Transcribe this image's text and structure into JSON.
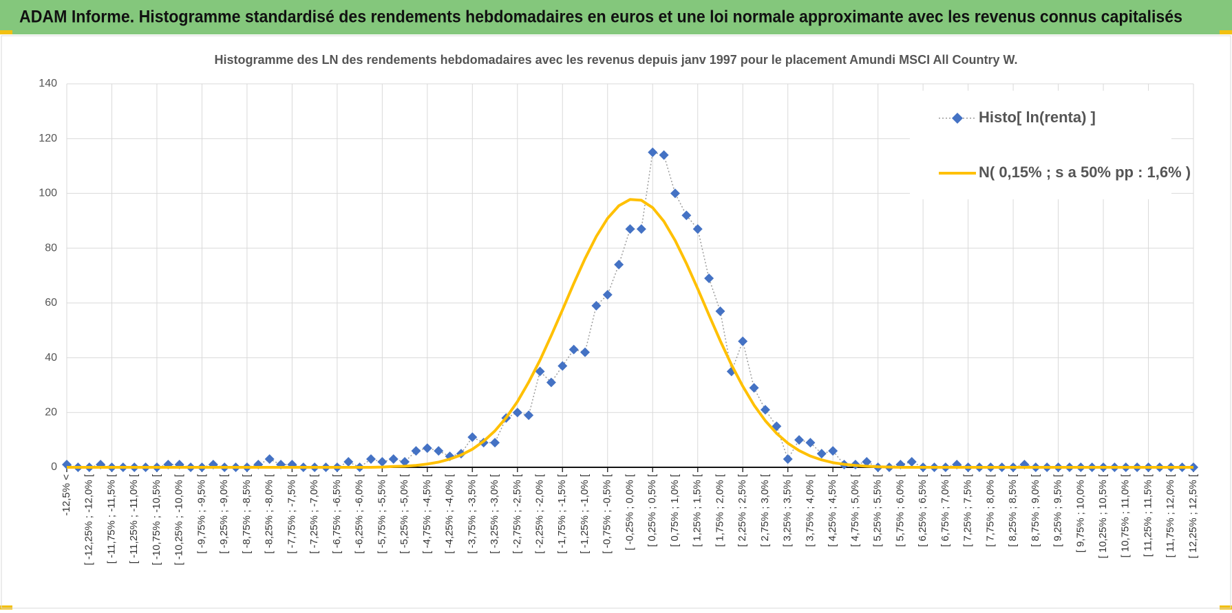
{
  "header": {
    "title": "ADAM Informe. Histogramme standardisé des rendements hebdomadaires en euros et une loi normale approximante avec les revenus connus capitalisés"
  },
  "chart_data": {
    "type": "line",
    "title": "Histogramme des LN des rendements hebdomadaires avec les revenus depuis janv 1997 pour le placement Amundi MSCI All Country W.",
    "categories": [
      "-12,5% <",
      null,
      "[ -12,25% ; -12,0% [",
      null,
      "[ -11,75% ; -11,5% [",
      null,
      "[ -11,25% ; -11,0% [",
      null,
      "[ -10,75% ; -10,5% [",
      null,
      "[ -10,25% ; -10,0% [",
      null,
      "[ -9,75% ; -9,5% [",
      null,
      "[ -9,25% ; -9,0% [",
      null,
      "[ -8,75% ; -8,5% [",
      null,
      "[ -8,25% ; -8,0% [",
      null,
      "[ -7,75% ; -7,5% [",
      null,
      "[ -7,25% ; -7,0% [",
      null,
      "[ -6,75% ; -6,5% [",
      null,
      "[ -6,25% ; -6,0% [",
      null,
      "[ -5,75% ; -5,5% [",
      null,
      "[ -5,25% ; -5,0% [",
      null,
      "[ -4,75% ; -4,5% [",
      null,
      "[ -4,25% ; -4,0% [",
      null,
      "[ -3,75% ; -3,5% [",
      null,
      "[ -3,25% ; -3,0% [",
      null,
      "[ -2,75% ; -2,5% [",
      null,
      "[ -2,25% ; -2,0% [",
      null,
      "[ -1,75% ; -1,5% [",
      null,
      "[ -1,25% ; -1,0% [",
      null,
      "[ -0,75% ; -0,5% [",
      null,
      "[ -0,25% ; 0,0% [",
      null,
      "[ 0,25% ; 0,5% [",
      null,
      "[ 0,75% ; 1,0% [",
      null,
      "[ 1,25% ; 1,5% [",
      null,
      "[ 1,75% ; 2,0% [",
      null,
      "[ 2,25% ; 2,5% [",
      null,
      "[ 2,75% ; 3,0% [",
      null,
      "[ 3,25% ; 3,5% [",
      null,
      "[ 3,75% ; 4,0% [",
      null,
      "[ 4,25% ; 4,5% [",
      null,
      "[ 4,75% ; 5,0% [",
      null,
      "[ 5,25% ; 5,5% [",
      null,
      "[ 5,75% ; 6,0% [",
      null,
      "[ 6,25% ; 6,5% [",
      null,
      "[ 6,75% ; 7,0% [",
      null,
      "[ 7,25% ; 7,5% [",
      null,
      "[ 7,75% ; 8,0% [",
      null,
      "[ 8,25% ; 8,5% [",
      null,
      "[ 8,75% ; 9,0% [",
      null,
      "[ 9,25% ; 9,5% [",
      null,
      "[ 9,75% ; 10,0% [",
      null,
      "[ 10,25% ; 10,5% [",
      null,
      "[ 10,75% ; 11,0% [",
      null,
      "[ 11,25% ; 11,5% [",
      null,
      "[ 11,75% ; 12,0% [",
      null,
      "[ 12,25% ; 12,5% ["
    ],
    "series": [
      {
        "name": "Histo[ ln(renta) ]",
        "color": "#4472c4",
        "marker": "diamond",
        "line_style": "dotted",
        "values": [
          1,
          0,
          0,
          1,
          0,
          0,
          0,
          0,
          0,
          1,
          1,
          0,
          0,
          1,
          0,
          0,
          0,
          1,
          3,
          1,
          1,
          0,
          0,
          0,
          0,
          2,
          0,
          3,
          2,
          3,
          2,
          6,
          7,
          6,
          4,
          5,
          11,
          9,
          9,
          18,
          20,
          19,
          35,
          31,
          37,
          43,
          42,
          59,
          63,
          74,
          87,
          87,
          115,
          114,
          100,
          92,
          87,
          69,
          57,
          35,
          46,
          29,
          21,
          15,
          3,
          10,
          9,
          5,
          6,
          1,
          1,
          2,
          0,
          0,
          1,
          2,
          0,
          0,
          0,
          1,
          0,
          0,
          0,
          0,
          0,
          1,
          0,
          0,
          0,
          0,
          0,
          0,
          0,
          0,
          0,
          0,
          0,
          0,
          0,
          0,
          0
        ]
      },
      {
        "name": "N( 0,15% ; s a 50% pp : 1,6% )",
        "color": "#ffc000",
        "marker": "none",
        "line_style": "solid",
        "values": [
          0,
          0,
          0,
          0,
          0,
          0,
          0,
          0,
          0,
          0,
          0,
          0,
          0,
          0,
          0,
          0,
          0,
          0,
          0,
          0,
          0,
          0,
          0,
          0,
          0,
          0,
          0,
          0,
          0.1,
          0.3,
          0.4,
          0.7,
          1.2,
          1.9,
          3,
          4.5,
          6.6,
          9.5,
          13.3,
          18.1,
          24,
          31.1,
          39.1,
          48.1,
          57.5,
          67.1,
          76.2,
          84.3,
          90.9,
          95.5,
          97.8,
          97.5,
          94.8,
          89.8,
          82.8,
          74.4,
          65.2,
          55.6,
          46.2,
          37.4,
          29.6,
          22.7,
          17,
          12.4,
          8.8,
          6.1,
          4.1,
          2.7,
          1.7,
          1.1,
          0.7,
          0.4,
          0.2,
          0.1,
          0,
          0,
          0,
          0,
          0,
          0,
          0,
          0,
          0,
          0,
          0,
          0,
          0,
          0,
          0,
          0,
          0,
          0,
          0,
          0,
          0,
          0,
          0,
          0,
          0,
          0,
          0
        ]
      }
    ],
    "ylim": [
      0,
      140
    ],
    "yticks": [
      0,
      20,
      40,
      60,
      80,
      100,
      120,
      140
    ],
    "grid": true,
    "legend": "top-right"
  }
}
